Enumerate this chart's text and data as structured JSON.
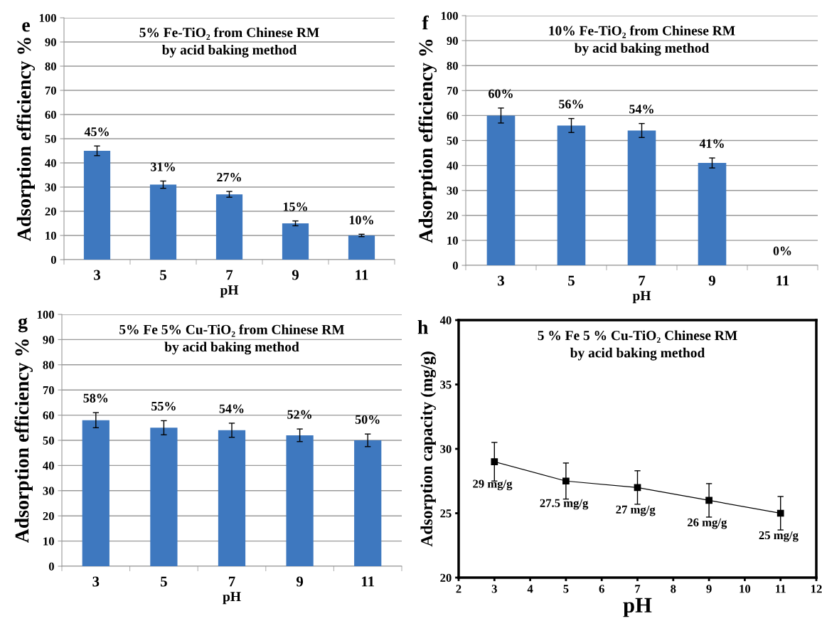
{
  "chart_data": [
    {
      "type": "bar",
      "title": "5% Fe-TiO₂ from Chinese RM\nby acid baking method",
      "xlabel": "pH",
      "ylabel": "Adsorption efficiency %",
      "annotations": [
        "e"
      ],
      "categories": [
        "3",
        "5",
        "7",
        "9",
        "11"
      ],
      "values": [
        45,
        31,
        27,
        15,
        10
      ],
      "errors": [
        2,
        1.5,
        1.2,
        1,
        0.5
      ],
      "value_labels": [
        "45%",
        "31%",
        "27%",
        "15%",
        "10%"
      ],
      "color": "#3e78bf",
      "ylim": [
        0,
        100
      ],
      "yticks": [
        0,
        10,
        20,
        30,
        40,
        50,
        60,
        70,
        80,
        90,
        100
      ],
      "grid": "y",
      "legend": false
    },
    {
      "type": "bar",
      "title": "10% Fe-TiO₂ from Chinese RM\nby acid baking method",
      "xlabel": "pH",
      "ylabel": "Adsorption efficiency %",
      "annotations": [
        "f"
      ],
      "categories": [
        "3",
        "5",
        "7",
        "9",
        "11"
      ],
      "values": [
        60,
        56,
        54,
        41,
        0
      ],
      "errors": [
        3,
        2.8,
        2.8,
        2,
        null
      ],
      "value_labels": [
        "60%",
        "56%",
        "54%",
        "41%",
        "0%"
      ],
      "color": "#3e78bf",
      "ylim": [
        0,
        100
      ],
      "yticks": [
        0,
        10,
        20,
        30,
        40,
        50,
        60,
        70,
        80,
        90,
        100
      ],
      "grid": "y",
      "legend": false
    },
    {
      "type": "bar",
      "title": "5% Fe 5% Cu-TiO₂ from Chinese RM\nby acid baking method",
      "xlabel": "pH",
      "ylabel": "Adsorption efficiency %",
      "annotations": [
        "g"
      ],
      "categories": [
        "3",
        "5",
        "7",
        "9",
        "11"
      ],
      "values": [
        58,
        55,
        54,
        52,
        50
      ],
      "errors": [
        3,
        2.8,
        2.8,
        2.5,
        2.5
      ],
      "value_labels": [
        "58%",
        "55%",
        "54%",
        "52%",
        "50%"
      ],
      "color": "#3e78bf",
      "ylim": [
        0,
        100
      ],
      "yticks": [
        0,
        10,
        20,
        30,
        40,
        50,
        60,
        70,
        80,
        90,
        100
      ],
      "grid": "y",
      "legend": false
    },
    {
      "type": "line",
      "title": "5 % Fe 5 % Cu-TiO₂ Chinese RM\nby acid baking method",
      "xlabel": "pH",
      "ylabel": "Adsorption capacity (mg/g)",
      "annotations": [
        "h"
      ],
      "x": [
        3,
        5,
        7,
        9,
        11
      ],
      "values": [
        29,
        27.5,
        27,
        26,
        25
      ],
      "errors": [
        1.5,
        1.4,
        1.3,
        1.3,
        1.3
      ],
      "value_labels": [
        "29 mg/g",
        "27.5 mg/g",
        "27 mg/g",
        "26 mg/g",
        "25 mg/g"
      ],
      "color": "#000000",
      "marker": "square",
      "line_style": "solid",
      "xlim": [
        2,
        12
      ],
      "xticks": [
        2,
        3,
        4,
        5,
        6,
        7,
        8,
        9,
        10,
        11,
        12
      ],
      "ylim": [
        20,
        40
      ],
      "yticks": [
        20,
        25,
        30,
        35,
        40
      ],
      "grid": false,
      "legend": false
    }
  ]
}
